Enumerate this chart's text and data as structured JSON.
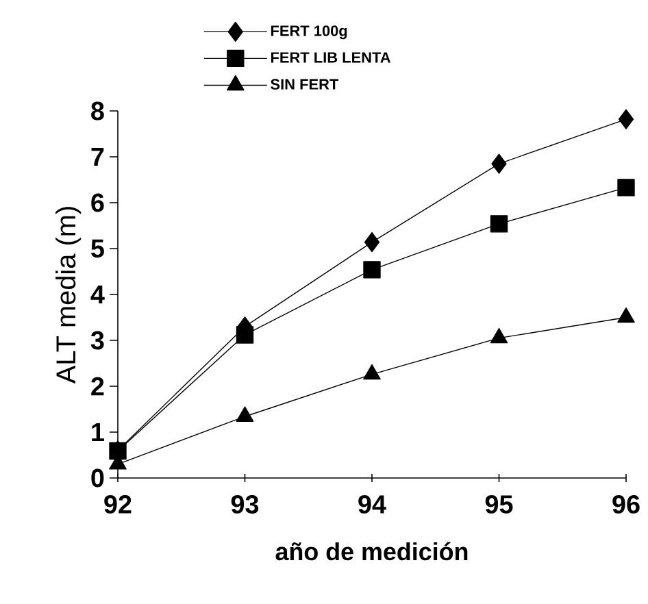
{
  "chart_data": {
    "type": "line",
    "xlabel": "año de medición",
    "ylabel": "ALT media (m)",
    "x": [
      92,
      93,
      94,
      95,
      96
    ],
    "series": [
      {
        "name": "FERT 100g",
        "color": "#000000",
        "marker": "diamond",
        "values": [
          0.6,
          3.3,
          5.14,
          6.85,
          7.82
        ]
      },
      {
        "name": "FERT LIB LENTA",
        "color": "#000000",
        "marker": "square",
        "values": [
          0.59,
          3.12,
          4.54,
          5.54,
          6.33
        ]
      },
      {
        "name": "SIN FERT",
        "color": "#000000",
        "marker": "triangle",
        "values": [
          0.3,
          1.34,
          2.26,
          3.05,
          3.5
        ]
      }
    ],
    "xlim": [
      92,
      96
    ],
    "xticks": [
      92,
      93,
      94,
      95,
      96
    ],
    "ylim": [
      0,
      8
    ],
    "yticks": [
      0,
      1,
      2,
      3,
      4,
      5,
      6,
      7,
      8
    ],
    "legend": "top",
    "line_style": "solid"
  }
}
